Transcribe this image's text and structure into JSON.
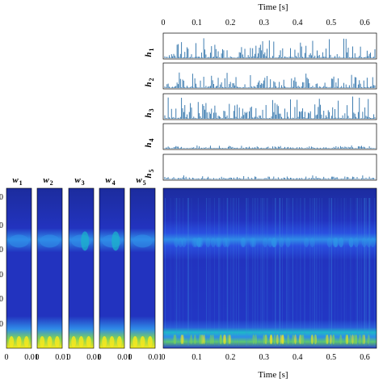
{
  "chart_data": {
    "type": "heatmap",
    "time_axis": {
      "label": "Time [s]",
      "ticks": [
        "0",
        "0.1",
        "0.2",
        "0.3",
        "0.4",
        "0.5",
        "0.6"
      ],
      "tick_values": [
        0,
        0.1,
        0.2,
        0.3,
        0.4,
        0.5,
        0.6
      ],
      "range": [
        0,
        0.635
      ]
    },
    "activations": [
      {
        "name": "h1",
        "base": "h",
        "sub": "1",
        "amplitude": 0.55
      },
      {
        "name": "h2",
        "base": "h",
        "sub": "2",
        "amplitude": 0.45
      },
      {
        "name": "h3",
        "base": "h",
        "sub": "3",
        "amplitude": 0.6
      },
      {
        "name": "h4",
        "base": "h",
        "sub": "4",
        "amplitude": 0.08
      },
      {
        "name": "h5",
        "base": "h",
        "sub": "5",
        "amplitude": 0.1
      }
    ],
    "bases": [
      {
        "name": "w1",
        "base": "w",
        "sub": "1"
      },
      {
        "name": "w2",
        "base": "w",
        "sub": "2"
      },
      {
        "name": "w3",
        "base": "w",
        "sub": "3"
      },
      {
        "name": "w4",
        "base": "w",
        "sub": "4"
      },
      {
        "name": "w5",
        "base": "w",
        "sub": "5"
      }
    ],
    "basis_ticks": [
      "0",
      "0.01"
    ],
    "y_ticks_partial": [
      "0",
      "0",
      "0",
      "0",
      "0",
      "0"
    ],
    "colormap": [
      "#1a2a8c",
      "#2a3fd0",
      "#2e7fe8",
      "#19b7c9",
      "#7dd05a",
      "#f5e81e"
    ]
  }
}
